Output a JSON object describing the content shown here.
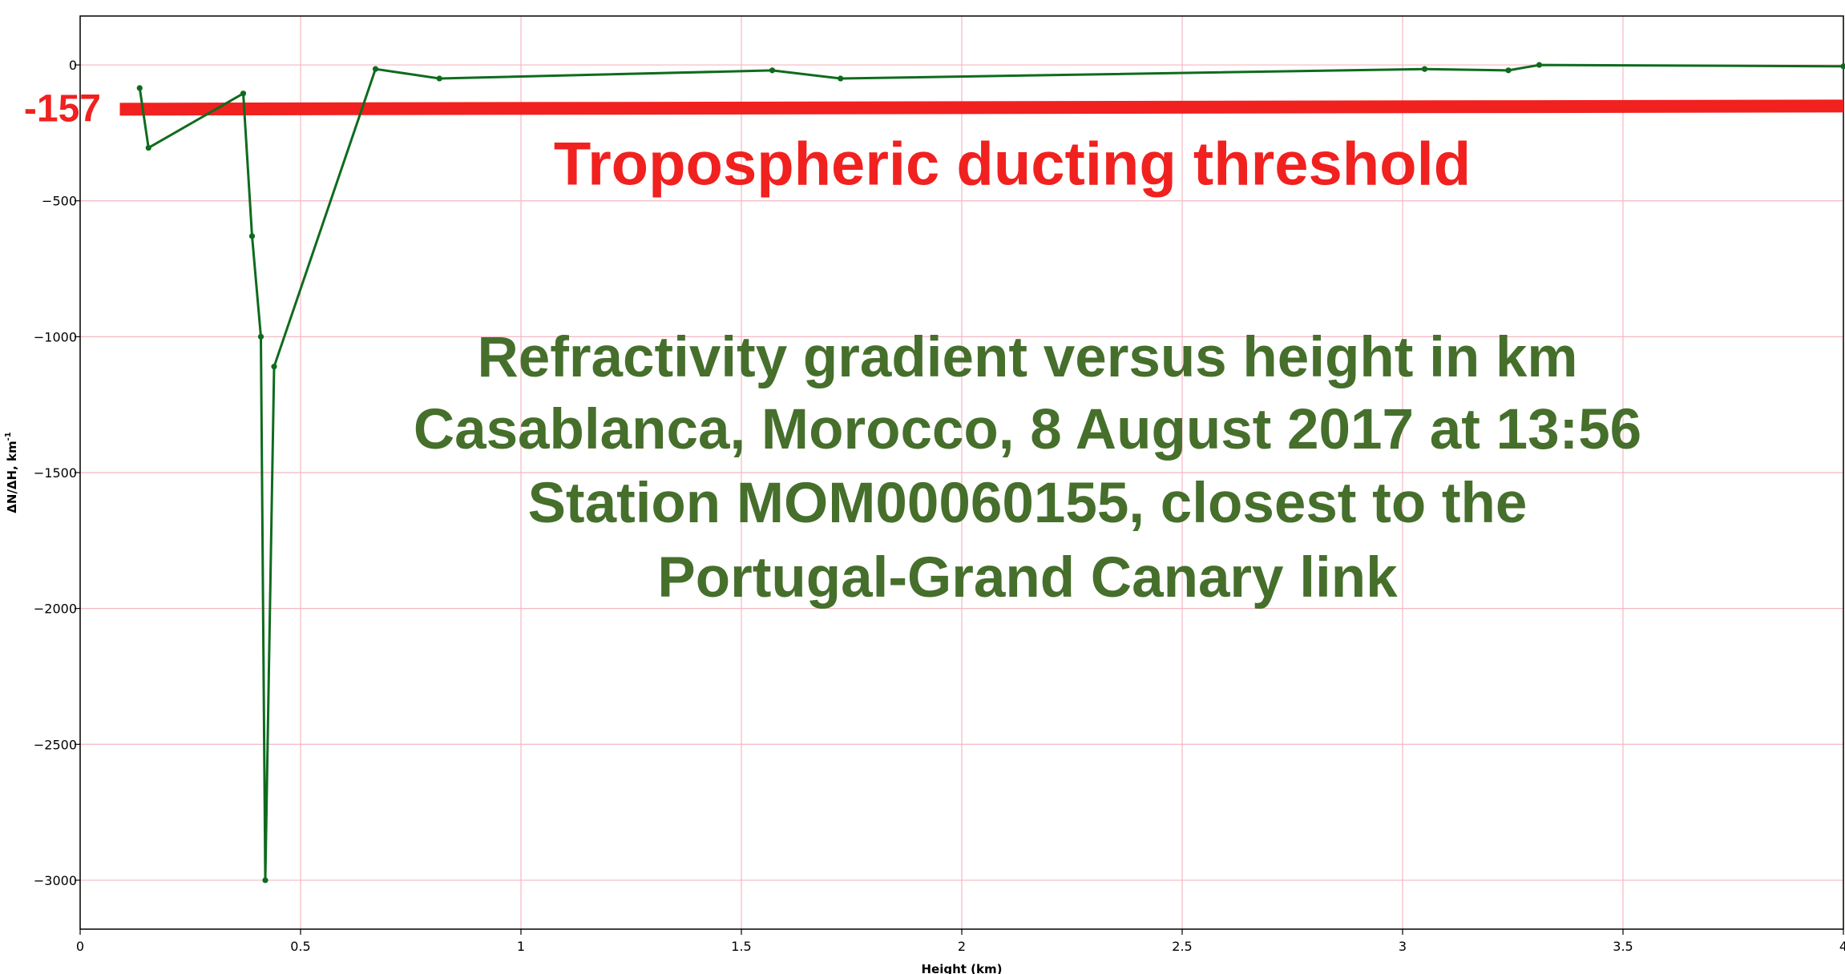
{
  "chart_data": {
    "type": "line",
    "title": "",
    "xlabel": "Height (km)",
    "ylabel": "ΔN/ΔH, km",
    "ylabel_superscript": "-1",
    "xlim": [
      0,
      4
    ],
    "ylim": [
      -3180,
      180
    ],
    "grid": true,
    "x_ticks": [
      0,
      0.5,
      1,
      1.5,
      2,
      2.5,
      3,
      3.5,
      4
    ],
    "x_tick_labels": [
      "0",
      "0.5",
      "1",
      "1.5",
      "2",
      "2.5",
      "3",
      "3.5",
      "4"
    ],
    "y_ticks": [
      0,
      -500,
      -1000,
      -1500,
      -2000,
      -2500,
      -3000
    ],
    "y_tick_labels": [
      "0",
      "−500",
      "−1000",
      "−1500",
      "−2000",
      "−2500",
      "−3000"
    ],
    "series": [
      {
        "x": [
          0.135,
          0.155,
          0.37,
          0.39,
          0.41,
          0.42,
          0.44,
          0.67,
          0.815,
          1.57,
          1.725,
          3.05,
          3.24,
          3.31,
          4.0
        ],
        "y": [
          -85,
          -305,
          -105,
          -630,
          -1000,
          -3000,
          -1110,
          -15,
          -50,
          -20,
          -50,
          -15,
          -20,
          0,
          -5
        ]
      }
    ],
    "threshold": {
      "value": -157,
      "label": "-157",
      "caption": "Tropospheric ducting threshold",
      "x_range": [
        0.09,
        4.0
      ]
    },
    "annotations": [
      "Refractivity gradient versus height in km",
      "Casablanca, Morocco, 8 August 2017 at 13:56",
      "Station MOM00060155, closest to the",
      "Portugal-Grand Canary link"
    ]
  },
  "colors": {
    "line": "#0e6b1e",
    "threshold": "#f0211f",
    "annotation": "#456f2b",
    "grid": "#f5b7c2",
    "axis": "#000000"
  }
}
